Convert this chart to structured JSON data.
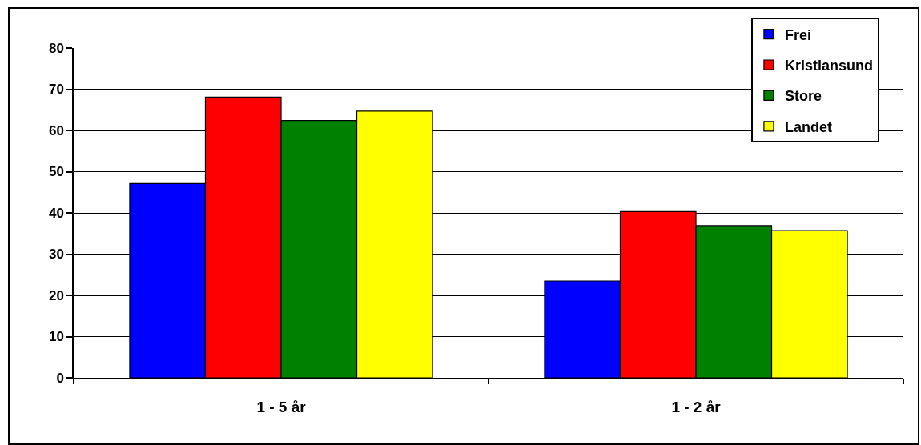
{
  "chart_data": {
    "type": "bar",
    "categories": [
      "1 - 5 år",
      "1 - 2 år"
    ],
    "series": [
      {
        "name": "Frei",
        "color": "#0000ff",
        "values": [
          47.1,
          23.5
        ]
      },
      {
        "name": "Kristiansund",
        "color": "#ff0000",
        "values": [
          68.1,
          40.3
        ]
      },
      {
        "name": "Store",
        "color": "#008000",
        "values": [
          62.4,
          36.9
        ]
      },
      {
        "name": "Landet",
        "color": "#ffff00",
        "values": [
          64.7,
          35.7
        ]
      }
    ],
    "ylim": [
      0,
      80
    ],
    "yticks": [
      0,
      10,
      20,
      30,
      40,
      50,
      60,
      70,
      80
    ],
    "grid": "y",
    "legend": "top right"
  }
}
